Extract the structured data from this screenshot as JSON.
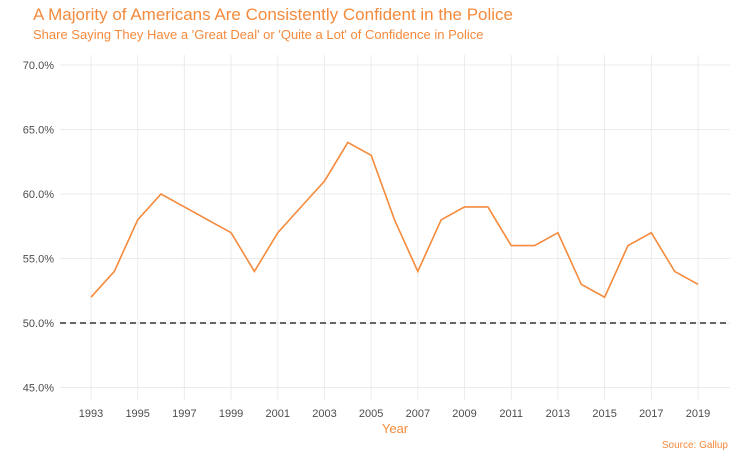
{
  "chart_data": {
    "type": "line",
    "title": "A Majority of Americans Are Consistently Confident in the Police",
    "subtitle": "Share Saying They Have a 'Great Deal' or 'Quite a Lot' of Confidence in Police",
    "caption": "Source: Gallup",
    "xlabel": "Year",
    "ylabel": "",
    "x": [
      1993,
      1994,
      1995,
      1996,
      1997,
      1998,
      1999,
      2000,
      2001,
      2002,
      2003,
      2004,
      2005,
      2006,
      2007,
      2008,
      2009,
      2010,
      2011,
      2012,
      2013,
      2014,
      2015,
      2016,
      2017,
      2018,
      2019
    ],
    "values": [
      52,
      54,
      58,
      60,
      59,
      58,
      57,
      54,
      57,
      59,
      61,
      64,
      63,
      58,
      54,
      58,
      59,
      59,
      56,
      56,
      57,
      53,
      52,
      56,
      57,
      54,
      53
    ],
    "xticks": [
      "1993",
      "1995",
      "1997",
      "1999",
      "2001",
      "2003",
      "2005",
      "2007",
      "2009",
      "2011",
      "2013",
      "2015",
      "2017",
      "2019"
    ],
    "yticks": [
      "45.0%",
      "50.0%",
      "55.0%",
      "60.0%",
      "65.0%",
      "70.0%"
    ],
    "ylim": [
      44.5,
      70.5
    ],
    "reference_line": {
      "y": 50,
      "style": "dashed",
      "color": "#333333"
    },
    "line_color": "#F58A3C",
    "grid": true,
    "legend": "none"
  }
}
